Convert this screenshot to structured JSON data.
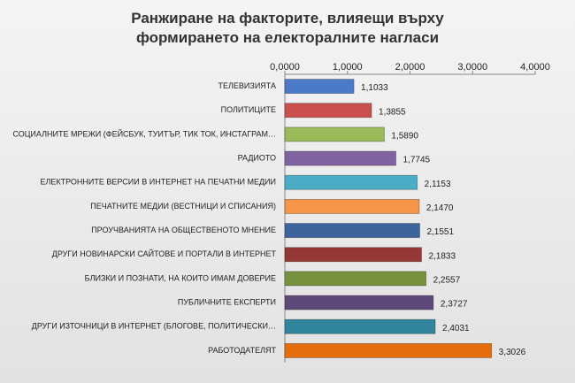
{
  "chart_data": {
    "type": "barh",
    "title": "Ранжиране на факторите, влияещи върху формирането на електоралните нагласи",
    "categories": [
      "ТЕЛЕВИЗИЯТА",
      "ПОЛИТИЦИТЕ",
      "СОЦИАЛНИТЕ МРЕЖИ (ФЕЙСБУК, ТУИТЪР, ТИК ТОК, ИНСТАГРАМ…",
      "РАДИОТО",
      "ЕЛЕКТРОННИТЕ ВЕРСИИ В ИНТЕРНЕТ НА ПЕЧАТНИ МЕДИИ",
      "ПЕЧАТНИТЕ МЕДИИ (ВЕСТНИЦИ И СПИСАНИЯ)",
      "ПРОУЧВАНИЯТА НА ОБЩЕСТВЕНОТО МНЕНИЕ",
      "ДРУГИ НОВИНАРСКИ САЙТОВЕ И ПОРТАЛИ В ИНТЕРНЕТ",
      "БЛИЗКИ И ПОЗНАТИ, НА КОИТО ИМАМ ДОВЕРИЕ",
      "ПУБЛИЧНИТЕ ЕКСПЕРТИ",
      "ДРУГИ ИЗТОЧНИЦИ В ИНТЕРНЕТ (БЛОГОВЕ, ПОЛИТИЧЕСКИ…",
      "РАБОТОДАТЕЛЯТ"
    ],
    "values": [
      1.1033,
      1.3855,
      1.589,
      1.7745,
      2.1153,
      2.147,
      2.1551,
      2.1833,
      2.2557,
      2.3727,
      2.4031,
      3.3026
    ],
    "value_labels": [
      "1,1033",
      "1,3855",
      "1,5890",
      "1,7745",
      "2,1153",
      "2,1470",
      "2,1551",
      "2,1833",
      "2,2557",
      "2,3727",
      "2,4031",
      "3,3026"
    ],
    "colors": [
      "#4a7ac8",
      "#c9504d",
      "#9bbb59",
      "#8064a2",
      "#4bacc6",
      "#f79646",
      "#3d649c",
      "#953735",
      "#76923c",
      "#5f497a",
      "#31859c",
      "#e46c0a"
    ],
    "xlim": [
      0,
      4
    ],
    "xticks": [
      {
        "value": 0,
        "label": "0,0000"
      },
      {
        "value": 1,
        "label": "1,0000"
      },
      {
        "value": 2,
        "label": "2,0000"
      },
      {
        "value": 3,
        "label": "3,0000"
      },
      {
        "value": 4,
        "label": "4,0000"
      }
    ]
  }
}
